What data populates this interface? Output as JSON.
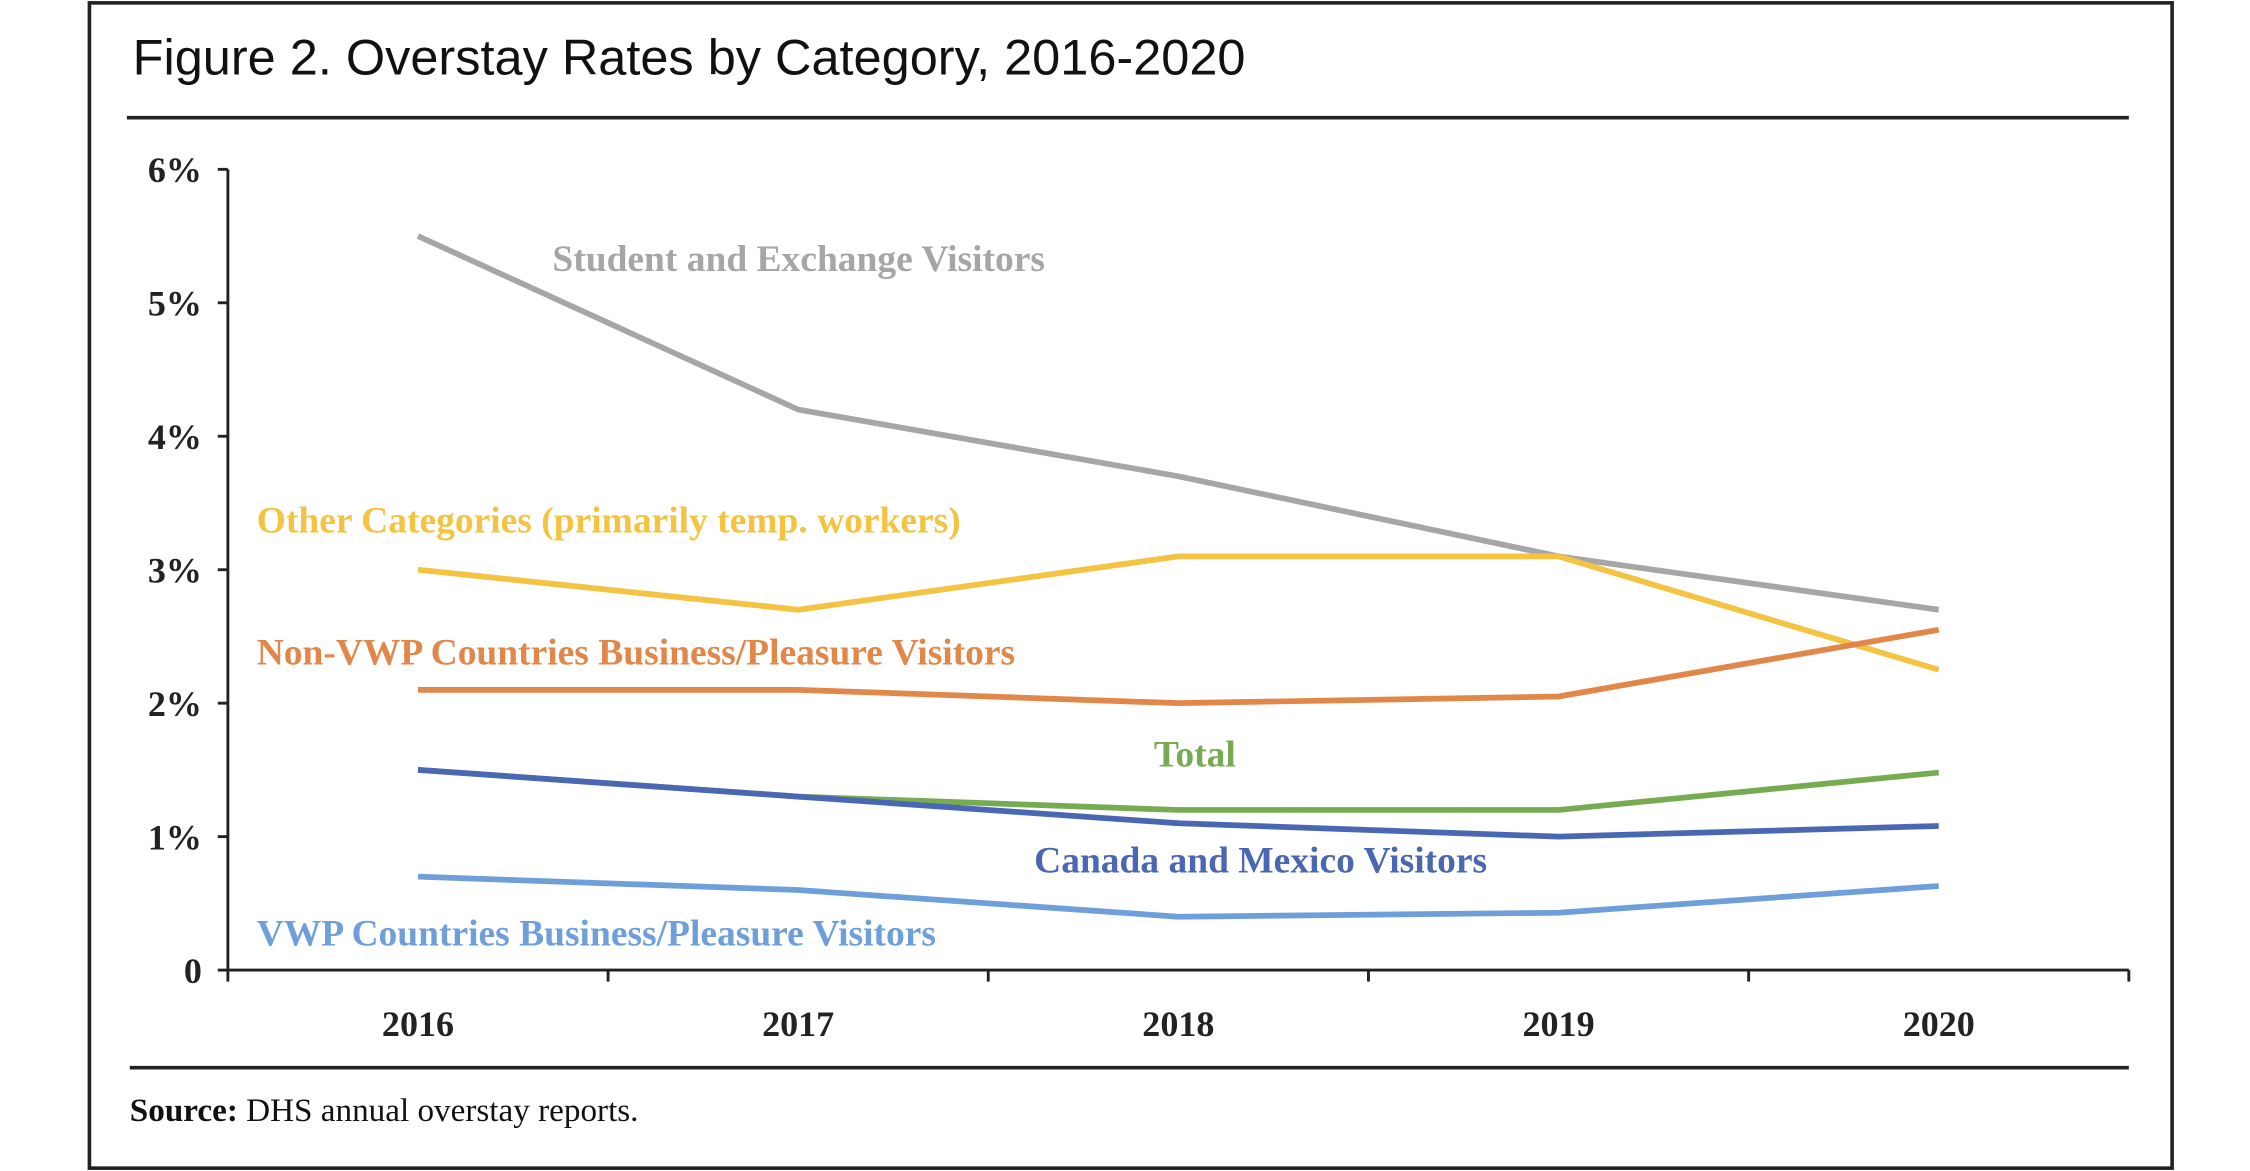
{
  "chart_data": {
    "type": "line",
    "title": "Figure 2. Overstay Rates by Category, 2016-2020",
    "xlabel": "",
    "ylabel": "",
    "ylim": [
      0,
      6
    ],
    "grid": false,
    "x": [
      "2016",
      "2017",
      "2018",
      "2019",
      "2020"
    ],
    "y_ticks": [
      "0",
      "1%",
      "2%",
      "3%",
      "4%",
      "5%",
      "6%"
    ],
    "series": [
      {
        "name": "Student and Exchange Visitors",
        "color": "#a6a6a6",
        "values": [
          5.5,
          4.2,
          3.7,
          3.1,
          2.7
        ]
      },
      {
        "name": "Other Categories (primarily temp. workers)",
        "color": "#f5c342",
        "values": [
          3.0,
          2.7,
          3.1,
          3.1,
          2.25
        ]
      },
      {
        "name": "Non-VWP Countries Business/Pleasure Visitors",
        "color": "#e2874a",
        "values": [
          2.1,
          2.1,
          2.0,
          2.05,
          2.55
        ]
      },
      {
        "name": "Total",
        "color": "#77ab52",
        "values": [
          1.5,
          1.3,
          1.2,
          1.2,
          1.48
        ]
      },
      {
        "name": "Canada and Mexico Visitors",
        "color": "#4a67b4",
        "values": [
          1.5,
          1.3,
          1.1,
          1.0,
          1.08
        ]
      },
      {
        "name": "VWP Countries Business/Pleasure Visitors",
        "color": "#6f9fda",
        "values": [
          0.7,
          0.6,
          0.4,
          0.43,
          0.63
        ]
      }
    ],
    "source_label": "Source:",
    "source_text": " DHS annual overstay reports."
  }
}
